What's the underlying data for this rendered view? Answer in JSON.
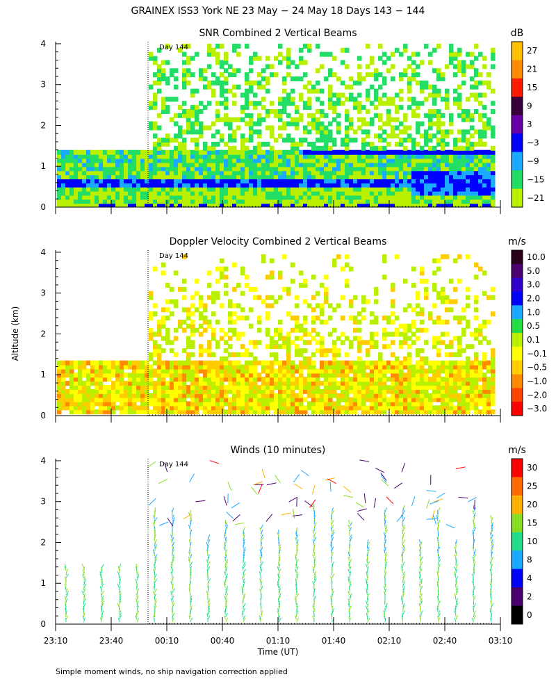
{
  "figure": {
    "title": "GRAINEX ISS3 York NE  23 May − 24 May 18 Days 143 − 144",
    "ylabel": "Altitude (km)",
    "xlabel": "Time (UT)",
    "footnote": "Simple moment winds, no ship navigation correction applied",
    "day_label": "Day 144"
  },
  "chart_data": [
    {
      "type": "heatmap",
      "title": "SNR Combined 2 Vertical Beams",
      "unit": "dB",
      "ylim": [
        0,
        4
      ],
      "yticks": [
        "0",
        "1",
        "2",
        "3",
        "4"
      ],
      "colorbar": {
        "labels": [
          "27",
          "21",
          "15",
          "9",
          "3",
          "−3",
          "−9",
          "−15",
          "−21"
        ],
        "colors": [
          "#ffc000",
          "#ff8c00",
          "#ff1a00",
          "#3a003a",
          "#6a00a8",
          "#0000ff",
          "#1aaaff",
          "#22dd66",
          "#b8f000"
        ]
      }
    },
    {
      "type": "heatmap",
      "title": "Doppler Velocity Combined 2 Vertical Beams",
      "unit": "m/s",
      "ylim": [
        0,
        4
      ],
      "yticks": [
        "0",
        "1",
        "2",
        "3",
        "4"
      ],
      "colorbar": {
        "labels": [
          "10.0",
          "5.0",
          "3.0",
          "2.0",
          "1.0",
          "0.5",
          "0.1",
          "−0.1",
          "−0.5",
          "−1.0",
          "−2.0",
          "−3.0"
        ],
        "colors": [
          "#2a001a",
          "#4a0070",
          "#3000cc",
          "#0000ff",
          "#1aaaff",
          "#22dd44",
          "#b8f000",
          "#ffff00",
          "#ffcc00",
          "#ff8c00",
          "#ff4400",
          "#ff0000"
        ]
      }
    },
    {
      "type": "scatter",
      "title": "Winds (10 minutes)",
      "unit": "m/s",
      "ylim": [
        0,
        4
      ],
      "yticks": [
        "0",
        "1",
        "2",
        "3",
        "4"
      ],
      "xticks": [
        "23:10",
        "23:40",
        "00:10",
        "00:40",
        "01:10",
        "01:40",
        "02:10",
        "02:40",
        "03:10"
      ],
      "colorbar": {
        "labels": [
          "30",
          "25",
          "20",
          "15",
          "10",
          "8",
          "4",
          "2",
          "0"
        ],
        "colors": [
          "#ff0000",
          "#ff6a00",
          "#ffb000",
          "#88dd22",
          "#22dd88",
          "#1aaaff",
          "#0000ff",
          "#4a0070",
          "#000000"
        ]
      }
    }
  ],
  "colors": {
    "background": "#ffffff",
    "axis": "#000000"
  }
}
